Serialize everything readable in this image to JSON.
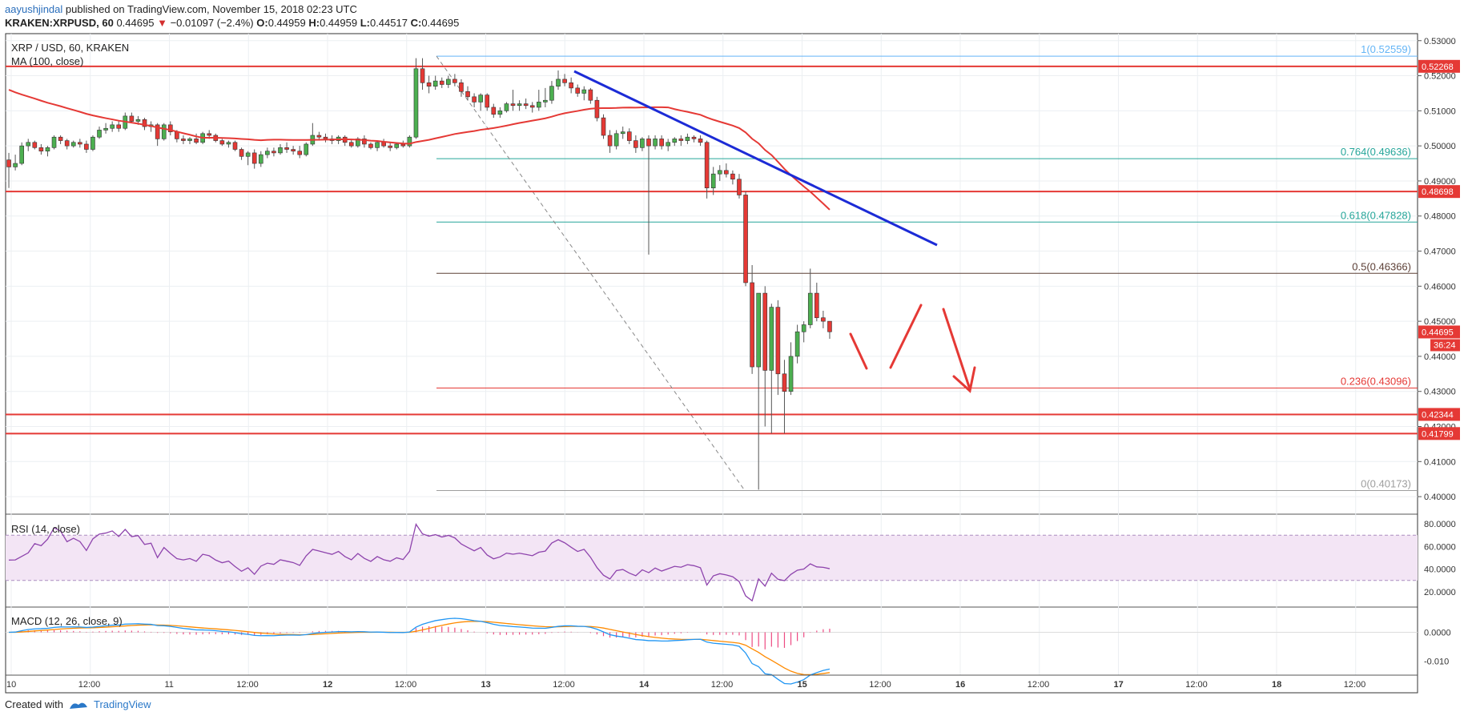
{
  "header": {
    "author": "aayushjindal",
    "published_text": "published on TradingView.com, November 15, 2018 02:23 UTC",
    "symbol": "KRAKEN:XRPUSD, 60",
    "last": "0.44695",
    "change": "−0.01097 (−2.4%)",
    "o_label": "O:",
    "o": "0.44959",
    "h_label": "H:",
    "h": "0.44959",
    "l_label": "L:",
    "l": "0.44517",
    "c_label": "C:",
    "c": "0.44695"
  },
  "legend": {
    "symbol_line": "XRP / USD, 60, KRAKEN",
    "ma_line": "MA (100, close)",
    "rsi_line": "RSI (14, close)",
    "macd_line": "MACD (12, 26, close, 9)"
  },
  "footer": {
    "created_with": "Created with",
    "brand": "TradingView"
  },
  "colors": {
    "up": "#4caf50",
    "down": "#e53935",
    "level": "#e53935",
    "trend": "#1c2bd6",
    "ma": "#e53935",
    "rsi": "#8e44ad",
    "macd": "#2196f3",
    "signal": "#ff8a00",
    "hist": "#e91e63"
  },
  "chart_data": {
    "type": "candlestick",
    "price_axis": {
      "range": [
        0.395,
        0.532
      ],
      "ticks": [
        "0.53000",
        "0.52000",
        "0.51000",
        "0.50000",
        "0.49000",
        "0.48000",
        "0.47000",
        "0.46000",
        "0.45000",
        "0.44000",
        "0.43000",
        "0.42000",
        "0.41000",
        "0.40000"
      ]
    },
    "time_axis": {
      "ticks": [
        "10",
        "12:00",
        "11",
        "12:00",
        "12",
        "12:00",
        "13",
        "12:00",
        "14",
        "12:00",
        "15",
        "12:00",
        "16",
        "12:00",
        "17",
        "12:00",
        "18",
        "12:00"
      ],
      "bold": [
        "12",
        "13",
        "14",
        "15",
        "16",
        "17",
        "18"
      ]
    },
    "horizontal_levels": [
      {
        "label": "0.52268",
        "value": 0.52268
      },
      {
        "label": "0.48698",
        "value": 0.48698
      },
      {
        "label": "0.42344",
        "value": 0.42344
      },
      {
        "label": "0.41799",
        "value": 0.41799
      }
    ],
    "current_price": {
      "label": "0.44695",
      "value": 0.44695,
      "countdown": "36:24"
    },
    "fibonacci": [
      {
        "label": "1(0.52559)",
        "value": 0.52559
      },
      {
        "label": "0.764(0.49636)",
        "value": 0.49636
      },
      {
        "label": "0.618(0.47828)",
        "value": 0.47828
      },
      {
        "label": "0.5(0.46366)",
        "value": 0.46366
      },
      {
        "label": "0.236(0.43096)",
        "value": 0.43096
      },
      {
        "label": "0(0.40173)",
        "value": 0.40173
      }
    ],
    "ohlc_bars_per_day": 24,
    "candles": [
      [
        0.496,
        0.498,
        0.488,
        0.494
      ],
      [
        0.494,
        0.4975,
        0.493,
        0.495
      ],
      [
        0.495,
        0.501,
        0.4945,
        0.5
      ],
      [
        0.5,
        0.502,
        0.4985,
        0.501
      ],
      [
        0.501,
        0.5015,
        0.499,
        0.4995
      ],
      [
        0.4995,
        0.5005,
        0.4975,
        0.4985
      ],
      [
        0.4985,
        0.5,
        0.497,
        0.4995
      ],
      [
        0.4995,
        0.503,
        0.499,
        0.5025
      ],
      [
        0.5025,
        0.503,
        0.5005,
        0.5015
      ],
      [
        0.5015,
        0.502,
        0.499,
        0.5
      ],
      [
        0.5,
        0.5015,
        0.4995,
        0.501
      ],
      [
        0.501,
        0.502,
        0.4995,
        0.5005
      ],
      [
        0.5005,
        0.5015,
        0.498,
        0.499
      ],
      [
        0.499,
        0.503,
        0.4985,
        0.5025
      ],
      [
        0.5025,
        0.5055,
        0.502,
        0.5045
      ],
      [
        0.5045,
        0.5065,
        0.5035,
        0.505
      ],
      [
        0.505,
        0.507,
        0.504,
        0.506
      ],
      [
        0.506,
        0.507,
        0.504,
        0.505
      ],
      [
        0.505,
        0.5095,
        0.5045,
        0.5085
      ],
      [
        0.5085,
        0.5095,
        0.5065,
        0.507
      ],
      [
        0.507,
        0.5085,
        0.506,
        0.5075
      ],
      [
        0.5075,
        0.508,
        0.5045,
        0.5055
      ],
      [
        0.5055,
        0.507,
        0.504,
        0.506
      ],
      [
        0.506,
        0.5065,
        0.5,
        0.502
      ],
      [
        0.502,
        0.5065,
        0.5015,
        0.506
      ],
      [
        0.506,
        0.507,
        0.503,
        0.504
      ],
      [
        0.504,
        0.5045,
        0.501,
        0.502
      ],
      [
        0.502,
        0.503,
        0.5005,
        0.5015
      ],
      [
        0.5015,
        0.5025,
        0.5005,
        0.502
      ],
      [
        0.502,
        0.5035,
        0.5005,
        0.501
      ],
      [
        0.501,
        0.504,
        0.5005,
        0.5035
      ],
      [
        0.5035,
        0.5045,
        0.502,
        0.503
      ],
      [
        0.503,
        0.5035,
        0.501,
        0.5015
      ],
      [
        0.5015,
        0.502,
        0.5,
        0.5005
      ],
      [
        0.5005,
        0.5015,
        0.4995,
        0.501
      ],
      [
        0.501,
        0.5015,
        0.4985,
        0.499
      ],
      [
        0.499,
        0.4995,
        0.496,
        0.497
      ],
      [
        0.497,
        0.4985,
        0.4945,
        0.498
      ],
      [
        0.498,
        0.499,
        0.4935,
        0.495
      ],
      [
        0.495,
        0.4985,
        0.494,
        0.4975
      ],
      [
        0.4975,
        0.4995,
        0.4965,
        0.4985
      ],
      [
        0.4985,
        0.4995,
        0.497,
        0.498
      ],
      [
        0.498,
        0.5005,
        0.4975,
        0.4995
      ],
      [
        0.4995,
        0.501,
        0.498,
        0.499
      ],
      [
        0.499,
        0.5,
        0.4975,
        0.4985
      ],
      [
        0.4985,
        0.5,
        0.4965,
        0.4975
      ],
      [
        0.4975,
        0.501,
        0.497,
        0.5005
      ],
      [
        0.5005,
        0.5065,
        0.5,
        0.503
      ],
      [
        0.503,
        0.504,
        0.5015,
        0.5025
      ],
      [
        0.5025,
        0.5035,
        0.501,
        0.502
      ],
      [
        0.502,
        0.503,
        0.5005,
        0.5015
      ],
      [
        0.5015,
        0.503,
        0.5005,
        0.5025
      ],
      [
        0.5025,
        0.503,
        0.5,
        0.501
      ],
      [
        0.501,
        0.502,
        0.4995,
        0.5
      ],
      [
        0.5,
        0.5025,
        0.4995,
        0.502
      ],
      [
        0.502,
        0.503,
        0.4995,
        0.5005
      ],
      [
        0.5005,
        0.501,
        0.499,
        0.4995
      ],
      [
        0.4995,
        0.5015,
        0.4985,
        0.501
      ],
      [
        0.501,
        0.502,
        0.4995,
        0.5
      ],
      [
        0.5,
        0.501,
        0.4985,
        0.4995
      ],
      [
        0.4995,
        0.501,
        0.499,
        0.5005
      ],
      [
        0.5005,
        0.5015,
        0.4995,
        0.5
      ],
      [
        0.5,
        0.503,
        0.4995,
        0.5025
      ],
      [
        0.5025,
        0.525,
        0.502,
        0.522
      ],
      [
        0.522,
        0.525,
        0.516,
        0.518
      ],
      [
        0.518,
        0.52,
        0.515,
        0.517
      ],
      [
        0.517,
        0.52,
        0.516,
        0.5185
      ],
      [
        0.5185,
        0.5195,
        0.5165,
        0.5175
      ],
      [
        0.5175,
        0.52,
        0.5165,
        0.519
      ],
      [
        0.519,
        0.5205,
        0.517,
        0.518
      ],
      [
        0.518,
        0.519,
        0.514,
        0.5155
      ],
      [
        0.5155,
        0.517,
        0.513,
        0.514
      ],
      [
        0.514,
        0.515,
        0.511,
        0.5125
      ],
      [
        0.5125,
        0.515,
        0.51,
        0.5145
      ],
      [
        0.5145,
        0.515,
        0.51,
        0.511
      ],
      [
        0.511,
        0.512,
        0.508,
        0.509
      ],
      [
        0.509,
        0.511,
        0.508,
        0.51
      ],
      [
        0.51,
        0.5125,
        0.5095,
        0.512
      ],
      [
        0.512,
        0.516,
        0.51,
        0.5115
      ],
      [
        0.5115,
        0.513,
        0.51,
        0.512
      ],
      [
        0.512,
        0.5135,
        0.5105,
        0.5115
      ],
      [
        0.5115,
        0.5125,
        0.5095,
        0.511
      ],
      [
        0.511,
        0.516,
        0.51,
        0.5125
      ],
      [
        0.5125,
        0.5165,
        0.511,
        0.513
      ],
      [
        0.513,
        0.5185,
        0.512,
        0.517
      ],
      [
        0.517,
        0.5215,
        0.516,
        0.519
      ],
      [
        0.519,
        0.5205,
        0.517,
        0.518
      ],
      [
        0.518,
        0.5195,
        0.515,
        0.5165
      ],
      [
        0.5165,
        0.5175,
        0.514,
        0.515
      ],
      [
        0.515,
        0.517,
        0.513,
        0.516
      ],
      [
        0.516,
        0.5165,
        0.512,
        0.513
      ],
      [
        0.513,
        0.514,
        0.507,
        0.508
      ],
      [
        0.508,
        0.509,
        0.502,
        0.503
      ],
      [
        0.503,
        0.5045,
        0.498,
        0.5
      ],
      [
        0.5,
        0.5045,
        0.499,
        0.5035
      ],
      [
        0.5035,
        0.5055,
        0.502,
        0.504
      ],
      [
        0.504,
        0.505,
        0.5005,
        0.5015
      ],
      [
        0.5015,
        0.503,
        0.498,
        0.4995
      ],
      [
        0.4995,
        0.5025,
        0.4985,
        0.502
      ],
      [
        0.502,
        0.503,
        0.469,
        0.5
      ],
      [
        0.5,
        0.503,
        0.499,
        0.502
      ],
      [
        0.502,
        0.503,
        0.499,
        0.5
      ],
      [
        0.5,
        0.502,
        0.4985,
        0.501
      ],
      [
        0.501,
        0.5025,
        0.5,
        0.502
      ],
      [
        0.502,
        0.503,
        0.5,
        0.5015
      ],
      [
        0.5015,
        0.5035,
        0.5005,
        0.5025
      ],
      [
        0.5025,
        0.503,
        0.501,
        0.502
      ],
      [
        0.502,
        0.503,
        0.5,
        0.501
      ],
      [
        0.501,
        0.5015,
        0.485,
        0.488
      ],
      [
        0.488,
        0.494,
        0.486,
        0.492
      ],
      [
        0.492,
        0.4945,
        0.49,
        0.493
      ],
      [
        0.493,
        0.495,
        0.491,
        0.492
      ],
      [
        0.492,
        0.493,
        0.489,
        0.4905
      ],
      [
        0.4905,
        0.492,
        0.485,
        0.486
      ],
      [
        0.486,
        0.487,
        0.46,
        0.461
      ],
      [
        0.461,
        0.466,
        0.435,
        0.437
      ],
      [
        0.437,
        0.457,
        0.402,
        0.458
      ],
      [
        0.458,
        0.46,
        0.42,
        0.436
      ],
      [
        0.436,
        0.455,
        0.418,
        0.454
      ],
      [
        0.454,
        0.456,
        0.429,
        0.435
      ],
      [
        0.435,
        0.439,
        0.418,
        0.43
      ],
      [
        0.43,
        0.444,
        0.429,
        0.44
      ],
      [
        0.44,
        0.449,
        0.438,
        0.447
      ],
      [
        0.447,
        0.45,
        0.444,
        0.449
      ],
      [
        0.449,
        0.465,
        0.448,
        0.458
      ],
      [
        0.458,
        0.461,
        0.45,
        0.451
      ],
      [
        0.451,
        0.453,
        0.448,
        0.45
      ],
      [
        0.45,
        0.45,
        0.445,
        0.447
      ]
    ],
    "ma": {
      "name": "MA (100, close)"
    },
    "rsi": {
      "name": "RSI (14, close)",
      "ticks": [
        "80.0000",
        "60.0000",
        "40.0000",
        "20.0000"
      ],
      "band": [
        30,
        70
      ],
      "range": [
        10,
        85
      ]
    },
    "macd": {
      "name": "MACD (12, 26, close, 9)",
      "ticks": [
        "0.0000",
        "-0.010"
      ],
      "range": [
        -0.0148,
        0.0065
      ]
    }
  }
}
